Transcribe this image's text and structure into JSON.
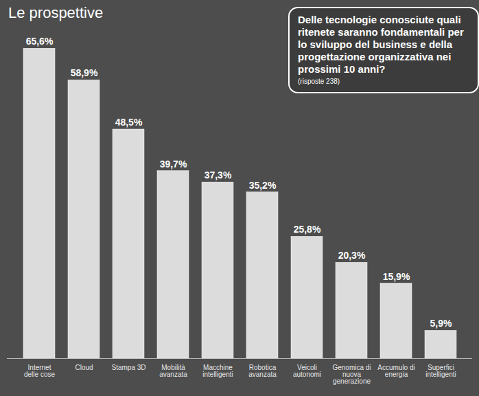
{
  "chart_data": {
    "type": "bar",
    "title": "Le prospettive",
    "annotations": [
      "Delle tecnologie conosciute quali ritenete saranno fondamentali per lo sviluppo del business e della progettazione organizzativa nei prossimi 10 anni?",
      "(risposte 238)"
    ],
    "categories": [
      "Internet delle cose",
      "Cloud",
      "Stampa 3D",
      "Mobilità avanzata",
      "Macchine intelligenti",
      "Robotica avanzata",
      "Veicoli autonomi",
      "Genomica di nuova generazione",
      "Accumulo di energia",
      "Superfici intelligenti"
    ],
    "values": [
      65.6,
      58.9,
      48.5,
      39.7,
      37.3,
      35.2,
      25.8,
      20.3,
      15.9,
      5.9
    ],
    "value_labels": [
      "65,6%",
      "58,9%",
      "48,5%",
      "39,7%",
      "37,3%",
      "35,2%",
      "25,8%",
      "20,3%",
      "15,9%",
      "5,9%"
    ],
    "color": "#dcdcdc",
    "ylim": [
      0,
      70
    ],
    "data_labels": true,
    "tick_labels": "x",
    "grid": false
  }
}
